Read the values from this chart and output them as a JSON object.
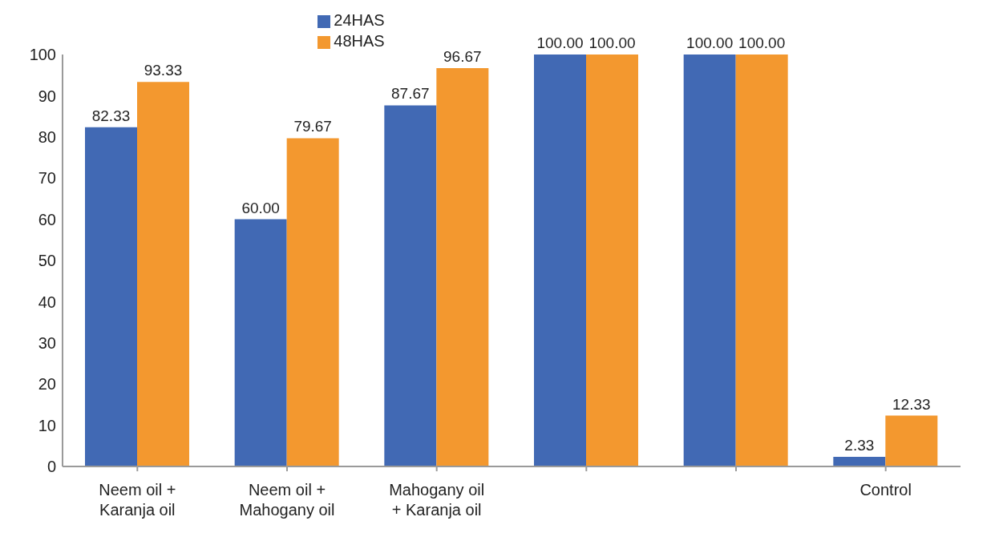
{
  "chart_data": {
    "type": "bar",
    "categories": [
      "Neem oil + Karanja oil",
      "Neem oil + Mahogany oil",
      "Mahogany oil + Karanja oil",
      null,
      null,
      "Control"
    ],
    "series": [
      {
        "name": "24HAS",
        "color": "#4169b4",
        "values": [
          82.33,
          60.0,
          87.67,
          100.0,
          100.0,
          2.33
        ],
        "value_labels": [
          "82.33",
          "60.00",
          "87.67",
          "100.00",
          "100.00",
          "2.33"
        ]
      },
      {
        "name": "48HAS",
        "color": "#f3982f",
        "values": [
          93.33,
          79.67,
          96.67,
          100.0,
          100.0,
          12.33
        ],
        "value_labels": [
          "93.33",
          "79.67",
          "96.67",
          "100.00",
          "100.00",
          "12.33"
        ]
      }
    ],
    "ylim": [
      0,
      100
    ],
    "yticks": [
      0,
      10,
      20,
      30,
      40,
      50,
      60,
      70,
      80,
      90,
      100
    ],
    "grid": false,
    "legend": "top"
  }
}
